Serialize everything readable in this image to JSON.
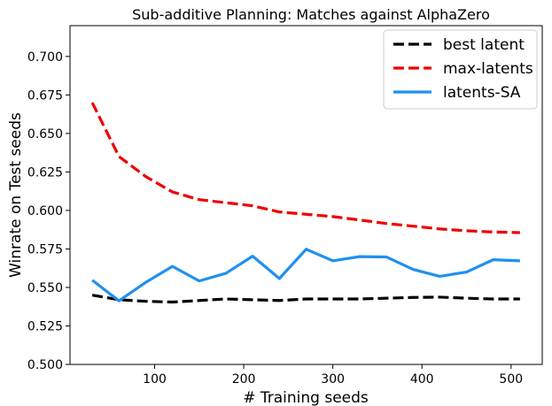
{
  "chart_data": {
    "type": "line",
    "title": "Sub-additive Planning: Matches against AlphaZero",
    "xlabel": "# Training seeds",
    "ylabel": "Winrate on Test seeds",
    "xlim": [
      5,
      535
    ],
    "ylim": [
      0.5,
      0.72
    ],
    "xticks": [
      100,
      200,
      300,
      400,
      500
    ],
    "yticks": [
      0.5,
      0.525,
      0.55,
      0.575,
      0.6,
      0.625,
      0.65,
      0.675,
      0.7
    ],
    "ytick_labels": [
      "0.500",
      "0.525",
      "0.550",
      "0.575",
      "0.600",
      "0.625",
      "0.650",
      "0.675",
      "0.700"
    ],
    "grid": false,
    "legend_position": "top-right",
    "x": [
      30,
      60,
      90,
      120,
      150,
      180,
      210,
      240,
      270,
      300,
      330,
      360,
      390,
      420,
      450,
      480,
      510
    ],
    "series": [
      {
        "name": "best latent",
        "color": "#000000",
        "dash": "dashed",
        "values": [
          0.545,
          0.542,
          0.541,
          0.5405,
          0.5415,
          0.5425,
          0.542,
          0.5415,
          0.5425,
          0.5425,
          0.5425,
          0.543,
          0.5435,
          0.5437,
          0.543,
          0.5425,
          0.5425
        ]
      },
      {
        "name": "max-latents",
        "color": "#ee0000",
        "dash": "dashed",
        "values": [
          0.67,
          0.635,
          0.622,
          0.612,
          0.607,
          0.605,
          0.603,
          0.599,
          0.5975,
          0.596,
          0.5938,
          0.5915,
          0.5898,
          0.588,
          0.5868,
          0.586,
          0.5856
        ]
      },
      {
        "name": "latents-SA",
        "color": "#2090ee",
        "dash": "solid",
        "values": [
          0.5547,
          0.5413,
          0.5533,
          0.5637,
          0.5542,
          0.5592,
          0.5703,
          0.5558,
          0.5748,
          0.5673,
          0.57,
          0.5698,
          0.5617,
          0.5572,
          0.56,
          0.568,
          0.5673
        ]
      }
    ]
  }
}
